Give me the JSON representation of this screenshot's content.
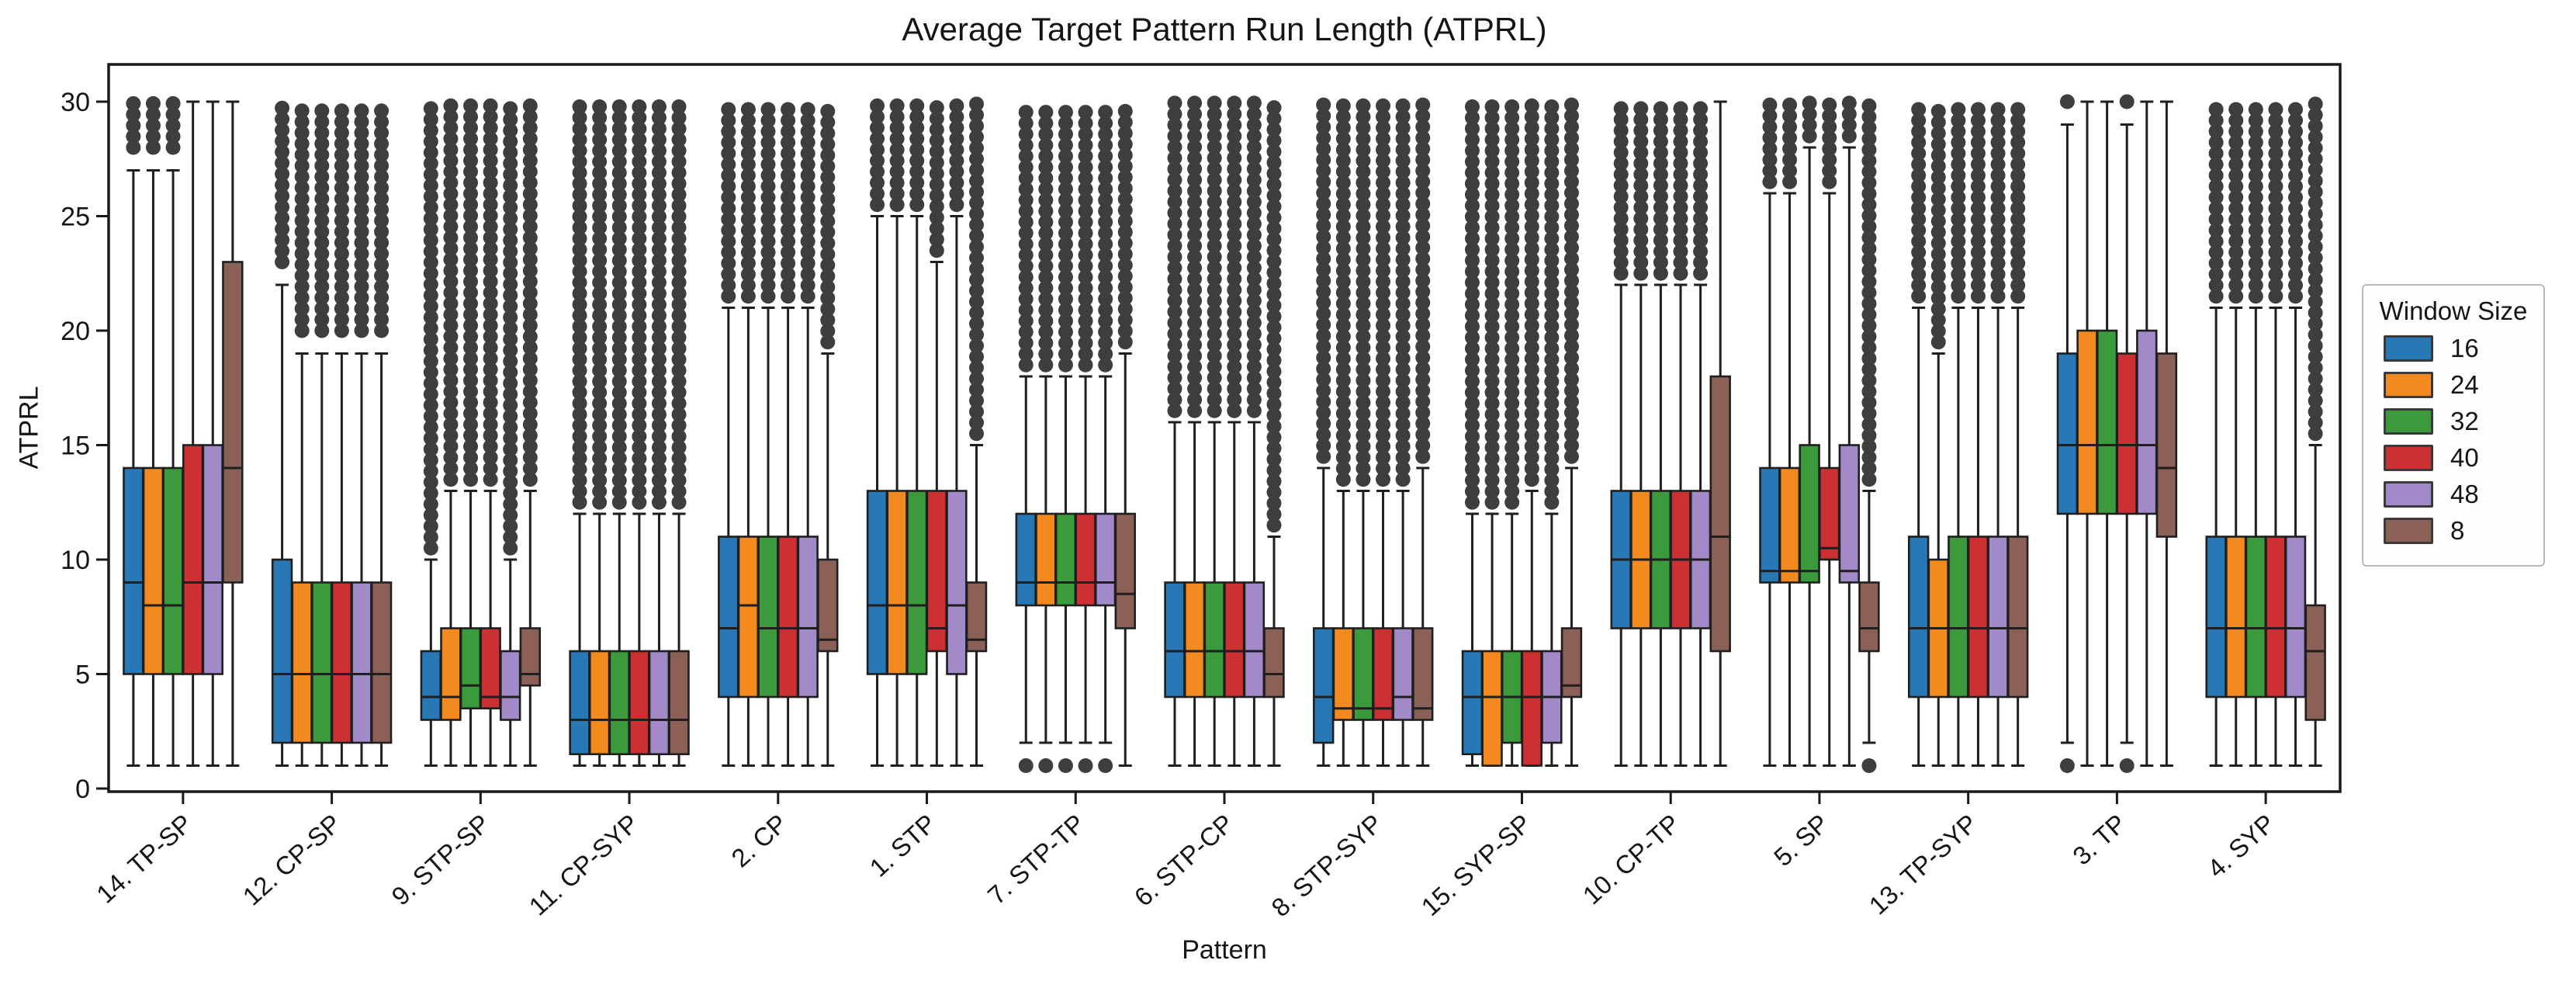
{
  "page": {
    "background": "#ffffff"
  },
  "colors": {
    "axis": "#1a1a1a",
    "box_edge": "#1f1f1f",
    "flier": "#2e2e2e",
    "legend_border": "#b9b9b9"
  },
  "chart_data": {
    "type": "grouped_boxplot",
    "title": "Average Target Pattern Run Length (ATPRL)",
    "xlabel": "Pattern",
    "ylabel": "ATPRL",
    "yticks": [
      0,
      5,
      10,
      15,
      20,
      25,
      30
    ],
    "ylim": [
      -0.5,
      31.6
    ],
    "grid": false,
    "legend": {
      "title": "Window Size",
      "position": "right-outside"
    },
    "series": [
      {
        "name": "16",
        "color": "#2878b5"
      },
      {
        "name": "24",
        "color": "#f28a20"
      },
      {
        "name": "32",
        "color": "#3a9a3c"
      },
      {
        "name": "40",
        "color": "#cd3032"
      },
      {
        "name": "48",
        "color": "#a289c8"
      },
      {
        "name": "8",
        "color": "#8b6157"
      }
    ],
    "categories": [
      "14. TP-SP",
      "12. CP-SP",
      "9. STP-SP",
      "11. CP-SYP",
      "2. CP",
      "1. STP",
      "7. STP-TP",
      "6. STP-CP",
      "8. STP-SYP",
      "15. SYP-SP",
      "10. CP-TP",
      "5. SP",
      "13. TP-SYP",
      "3. TP",
      "4. SYP"
    ],
    "box_format": [
      "whisker_low",
      "q1",
      "median",
      "q3",
      "whisker_high",
      "outliers_high_range",
      "outliers_low_values"
    ],
    "boxes": [
      [
        [
          1,
          5,
          9,
          14,
          27,
          [
            28,
            30
          ],
          null
        ],
        [
          1,
          5,
          8,
          14,
          27,
          [
            28,
            30
          ],
          null
        ],
        [
          1,
          5,
          8,
          14,
          27,
          [
            28,
            30
          ],
          null
        ],
        [
          1,
          5,
          9,
          15,
          30,
          null,
          null
        ],
        [
          1,
          5,
          9,
          15,
          30,
          null,
          null
        ],
        [
          1,
          9,
          14,
          23,
          30,
          null,
          null
        ]
      ],
      [
        [
          1,
          2,
          5,
          10,
          22,
          [
            23,
            30
          ],
          null
        ],
        [
          1,
          2,
          5,
          9,
          19,
          [
            20,
            30
          ],
          null
        ],
        [
          1,
          2,
          5,
          9,
          19,
          [
            20,
            30
          ],
          null
        ],
        [
          1,
          2,
          5,
          9,
          19,
          [
            20,
            30
          ],
          null
        ],
        [
          1,
          2,
          5,
          9,
          19,
          [
            20,
            30
          ],
          null
        ],
        [
          1,
          2,
          5,
          9,
          19,
          [
            20,
            30
          ],
          null
        ]
      ],
      [
        [
          1,
          3,
          4,
          6,
          10,
          [
            10.5,
            30
          ],
          null
        ],
        [
          1,
          3,
          4,
          7,
          13,
          [
            13.5,
            30
          ],
          null
        ],
        [
          1,
          3.5,
          4.5,
          7,
          13,
          [
            13.5,
            30
          ],
          null
        ],
        [
          1,
          3.5,
          4,
          7,
          13,
          [
            13.5,
            30
          ],
          null
        ],
        [
          1,
          3,
          4,
          6,
          10,
          [
            10.5,
            30
          ],
          null
        ],
        [
          1,
          4.5,
          5,
          7,
          13,
          [
            13.5,
            30
          ],
          null
        ]
      ],
      [
        [
          1,
          1.5,
          3,
          6,
          12,
          [
            12.5,
            30
          ],
          null
        ],
        [
          1,
          1.5,
          3,
          6,
          12,
          [
            12.5,
            30
          ],
          null
        ],
        [
          1,
          1.5,
          3,
          6,
          12,
          [
            12.5,
            30
          ],
          null
        ],
        [
          1,
          1.5,
          3,
          6,
          12,
          [
            12.5,
            30
          ],
          null
        ],
        [
          1,
          1.5,
          3,
          6,
          12,
          [
            12.5,
            30
          ],
          null
        ],
        [
          1,
          1.5,
          3,
          6,
          12,
          [
            12.5,
            30
          ],
          null
        ]
      ],
      [
        [
          1,
          4,
          7,
          11,
          21,
          [
            21.5,
            30
          ],
          null
        ],
        [
          1,
          4,
          8,
          11,
          21,
          [
            21.5,
            30
          ],
          null
        ],
        [
          1,
          4,
          7,
          11,
          21,
          [
            21.5,
            30
          ],
          null
        ],
        [
          1,
          4,
          7,
          11,
          21,
          [
            21.5,
            30
          ],
          null
        ],
        [
          1,
          4,
          7,
          11,
          21,
          [
            21.5,
            30
          ],
          null
        ],
        [
          1,
          6,
          6.5,
          10,
          19,
          [
            19.5,
            30
          ],
          null
        ]
      ],
      [
        [
          1,
          5,
          8,
          13,
          25,
          [
            25.5,
            30
          ],
          null
        ],
        [
          1,
          5,
          8,
          13,
          25,
          [
            25.5,
            30
          ],
          null
        ],
        [
          1,
          5,
          8,
          13,
          25,
          [
            25.5,
            30
          ],
          null
        ],
        [
          1,
          6,
          7,
          13,
          23,
          [
            23.5,
            30
          ],
          null
        ],
        [
          1,
          5,
          8,
          13,
          25,
          [
            25.5,
            30
          ],
          null
        ],
        [
          1,
          6,
          6.5,
          9,
          15,
          [
            15.5,
            30
          ],
          null
        ]
      ],
      [
        [
          2,
          8,
          9,
          12,
          18,
          [
            18.5,
            30
          ],
          [
            1
          ]
        ],
        [
          2,
          8,
          9,
          12,
          18,
          [
            18.5,
            30
          ],
          [
            1
          ]
        ],
        [
          2,
          8,
          9,
          12,
          18,
          [
            18.5,
            30
          ],
          [
            1
          ]
        ],
        [
          2,
          8,
          9,
          12,
          18,
          [
            18.5,
            30
          ],
          [
            1
          ]
        ],
        [
          2,
          8,
          9,
          12,
          18,
          [
            18.5,
            30
          ],
          [
            1
          ]
        ],
        [
          1,
          7,
          8.5,
          12,
          19,
          [
            19.5,
            30
          ],
          null
        ]
      ],
      [
        [
          1,
          4,
          6,
          9,
          16,
          [
            16.5,
            30
          ],
          null
        ],
        [
          1,
          4,
          6,
          9,
          16,
          [
            16.5,
            30
          ],
          null
        ],
        [
          1,
          4,
          6,
          9,
          16,
          [
            16.5,
            30
          ],
          null
        ],
        [
          1,
          4,
          6,
          9,
          16,
          [
            16.5,
            30
          ],
          null
        ],
        [
          1,
          4,
          6,
          9,
          16,
          [
            16.5,
            30
          ],
          null
        ],
        [
          1,
          4,
          5,
          7,
          11,
          [
            11.5,
            30
          ],
          null
        ]
      ],
      [
        [
          1,
          2,
          4,
          7,
          14,
          [
            14.5,
            30
          ],
          null
        ],
        [
          1,
          3,
          3.5,
          7,
          13,
          [
            13.5,
            30
          ],
          null
        ],
        [
          1,
          3,
          3.5,
          7,
          13,
          [
            13.5,
            30
          ],
          null
        ],
        [
          1,
          3,
          3.5,
          7,
          13,
          [
            13.5,
            30
          ],
          null
        ],
        [
          1,
          3,
          4,
          7,
          13,
          [
            13.5,
            30
          ],
          null
        ],
        [
          1,
          3,
          3.5,
          7,
          14,
          [
            14.5,
            30
          ],
          null
        ]
      ],
      [
        [
          1,
          1.5,
          4,
          6,
          12,
          [
            12.5,
            30
          ],
          null
        ],
        [
          1,
          1,
          4,
          6,
          12,
          [
            12.5,
            30
          ],
          null
        ],
        [
          1,
          2,
          4,
          6,
          12,
          [
            12.5,
            30
          ],
          null
        ],
        [
          1,
          1,
          4,
          6,
          13,
          [
            13.5,
            30
          ],
          null
        ],
        [
          1,
          2,
          4,
          6,
          12,
          [
            12.5,
            30
          ],
          null
        ],
        [
          1,
          4,
          4.5,
          7,
          14,
          [
            14.5,
            30
          ],
          null
        ]
      ],
      [
        [
          1,
          7,
          10,
          13,
          22,
          [
            22.5,
            30
          ],
          null
        ],
        [
          1,
          7,
          10,
          13,
          22,
          [
            22.5,
            30
          ],
          null
        ],
        [
          1,
          7,
          10,
          13,
          22,
          [
            22.5,
            30
          ],
          null
        ],
        [
          1,
          7,
          10,
          13,
          22,
          [
            22.5,
            30
          ],
          null
        ],
        [
          1,
          7,
          10,
          13,
          22,
          [
            22.5,
            30
          ],
          null
        ],
        [
          1,
          6,
          11,
          18,
          30,
          null,
          null
        ]
      ],
      [
        [
          1,
          9,
          9.5,
          14,
          26,
          [
            26.5,
            30
          ],
          null
        ],
        [
          1,
          9,
          9.5,
          14,
          26,
          [
            26.5,
            30
          ],
          null
        ],
        [
          1,
          9,
          9.5,
          15,
          28,
          [
            28.5,
            30
          ],
          null
        ],
        [
          1,
          10,
          10.5,
          14,
          26,
          [
            26.5,
            30
          ],
          null
        ],
        [
          1,
          9,
          9.5,
          15,
          28,
          [
            28.5,
            30
          ],
          null
        ],
        [
          2,
          6,
          7,
          9,
          13,
          [
            13.5,
            30
          ],
          [
            1
          ]
        ]
      ],
      [
        [
          1,
          4,
          7,
          11,
          21,
          [
            21.5,
            30
          ],
          null
        ],
        [
          1,
          4,
          7,
          10,
          19,
          [
            19.5,
            30
          ],
          null
        ],
        [
          1,
          4,
          7,
          11,
          21,
          [
            21.5,
            30
          ],
          null
        ],
        [
          1,
          4,
          7,
          11,
          21,
          [
            21.5,
            30
          ],
          null
        ],
        [
          1,
          4,
          7,
          11,
          21,
          [
            21.5,
            30
          ],
          null
        ],
        [
          1,
          4,
          7,
          11,
          21,
          [
            21.5,
            30
          ],
          null
        ]
      ],
      [
        [
          2,
          12,
          15,
          19,
          29,
          [
            30,
            30
          ],
          [
            1
          ]
        ],
        [
          1,
          12,
          15,
          20,
          30,
          null,
          null
        ],
        [
          1,
          12,
          15,
          20,
          30,
          null,
          null
        ],
        [
          2,
          12,
          15,
          19,
          29,
          [
            30,
            30
          ],
          [
            1
          ]
        ],
        [
          1,
          12,
          15,
          20,
          30,
          null,
          null
        ],
        [
          1,
          11,
          14,
          19,
          30,
          null,
          null
        ]
      ],
      [
        [
          1,
          4,
          7,
          11,
          21,
          [
            21.5,
            30
          ],
          null
        ],
        [
          1,
          4,
          7,
          11,
          21,
          [
            21.5,
            30
          ],
          null
        ],
        [
          1,
          4,
          7,
          11,
          21,
          [
            21.5,
            30
          ],
          null
        ],
        [
          1,
          4,
          7,
          11,
          21,
          [
            21.5,
            30
          ],
          null
        ],
        [
          1,
          4,
          7,
          11,
          21,
          [
            21.5,
            30
          ],
          null
        ],
        [
          1,
          3,
          6,
          8,
          15,
          [
            15.5,
            30
          ],
          null
        ]
      ]
    ]
  }
}
